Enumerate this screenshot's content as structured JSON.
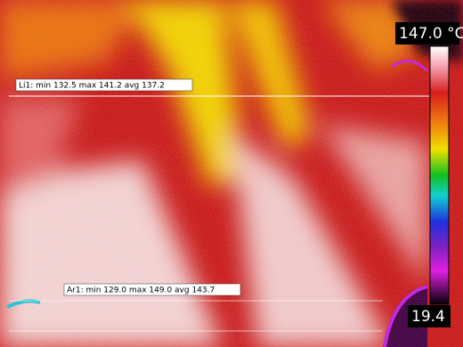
{
  "scale": {
    "max_label": "147.0 °C",
    "min_label": "19.4"
  },
  "measurements": {
    "line": "Li1: min 132.5 max 141.2 avg 137.2",
    "area": "Ar1: min 129.0 max 149.0 avg 143.7"
  }
}
